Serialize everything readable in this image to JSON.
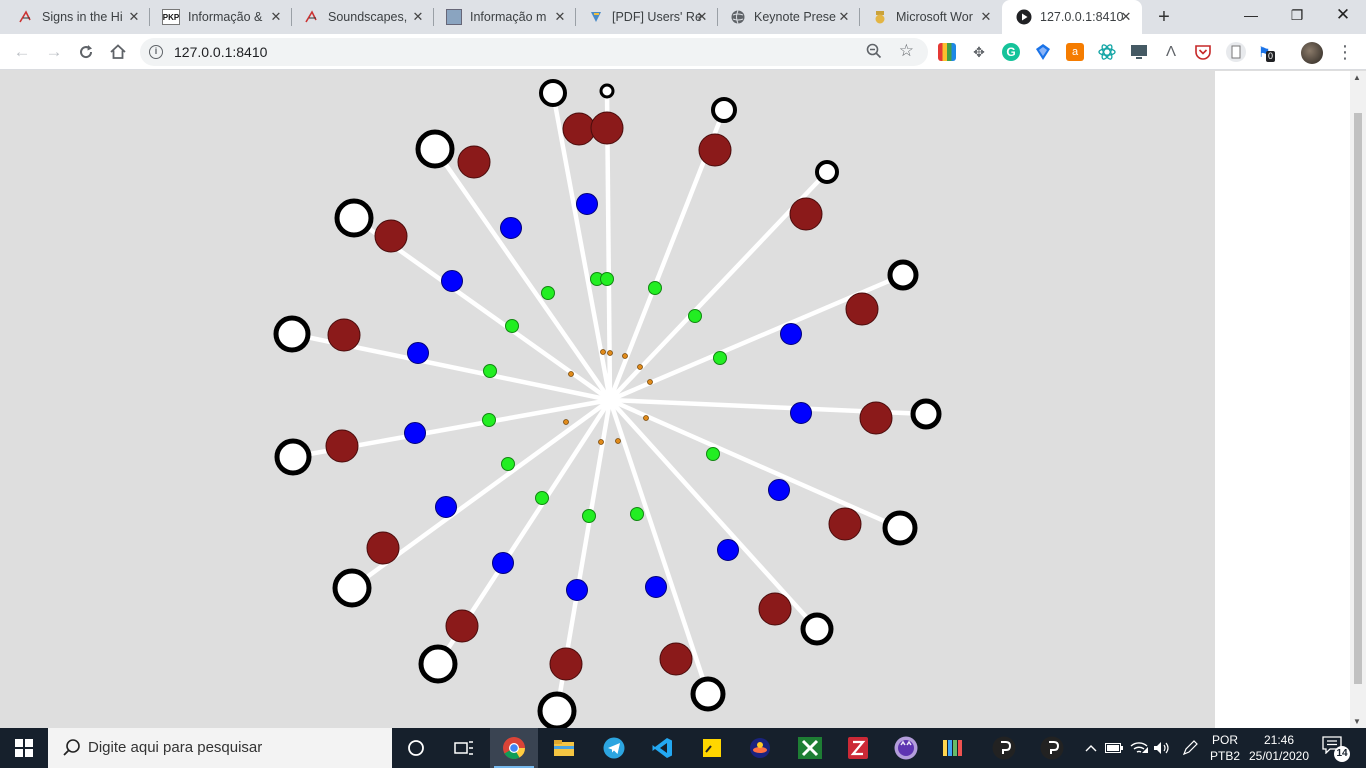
{
  "browser": {
    "tabs": [
      {
        "label": "Signs in the Hi",
        "icon": "paper-icon"
      },
      {
        "label": "Informação &",
        "icon": "pkp-icon"
      },
      {
        "label": "Soundscapes,",
        "icon": "paper-icon"
      },
      {
        "label": "Informação m",
        "icon": "page-icon"
      },
      {
        "label": "[PDF] Users' Re",
        "icon": "pdf-icon"
      },
      {
        "label": "Keynote Prese",
        "icon": "globe-icon"
      },
      {
        "label": "Microsoft Wor",
        "icon": "scholar-icon"
      },
      {
        "label": "127.0.0.1:8410",
        "icon": "play-icon",
        "active": true
      }
    ],
    "address": "127.0.0.1:8410",
    "extension_badge": "0"
  },
  "taskbar": {
    "search_placeholder": "Digite aqui para pesquisar",
    "lang_line1": "POR",
    "lang_line2": "PTB2",
    "time": "21:46",
    "date": "25/01/2020",
    "notification_count": "14"
  }
}
